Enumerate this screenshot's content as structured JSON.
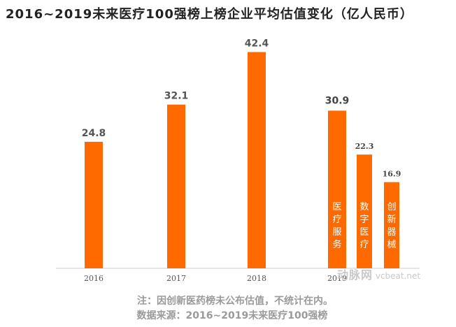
{
  "title": "2016~2019未来医疗100强榜上榜企业平均估值变化（亿人民币）",
  "chart_data": {
    "type": "bar",
    "categories": [
      "2016",
      "2017",
      "2018",
      "2019"
    ],
    "values": [
      24.8,
      32.1,
      42.4,
      30.9
    ],
    "value_labels": [
      "24.8",
      "32.1",
      "42.4",
      "30.9"
    ],
    "sub_bars_2019": [
      {
        "label": "医疗服务",
        "value": 30.9,
        "value_label": "30.9"
      },
      {
        "label": "数字医疗",
        "value": 22.3,
        "value_label": "22.3"
      },
      {
        "label": "创新器械",
        "value": 16.9,
        "value_label": "16.9"
      }
    ],
    "ylim": [
      0,
      48
    ],
    "grid": false,
    "bar_color": "#FF6A00",
    "axis_color": "#DDDDDD"
  },
  "notes": {
    "note": "注：因创新医药榜未公布估值，不统计在内。",
    "source": "数据来源：2016~2019未来医疗100强榜"
  },
  "watermark": {
    "logo": "动脉网",
    "site": "vcbeat.net"
  }
}
